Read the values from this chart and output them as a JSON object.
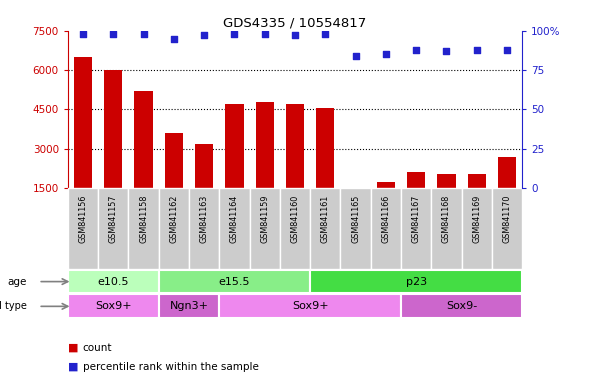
{
  "title": "GDS4335 / 10554817",
  "samples": [
    "GSM841156",
    "GSM841157",
    "GSM841158",
    "GSM841162",
    "GSM841163",
    "GSM841164",
    "GSM841159",
    "GSM841160",
    "GSM841161",
    "GSM841165",
    "GSM841166",
    "GSM841167",
    "GSM841168",
    "GSM841169",
    "GSM841170"
  ],
  "counts": [
    6500,
    6000,
    5200,
    3600,
    3200,
    4700,
    4800,
    4700,
    4550,
    1480,
    1750,
    2100,
    2050,
    2050,
    2700
  ],
  "percentiles": [
    98,
    98,
    98,
    95,
    97,
    98,
    98,
    97,
    98,
    84,
    85,
    88,
    87,
    88,
    88
  ],
  "ylim_left": [
    1500,
    7500
  ],
  "ylim_right": [
    0,
    100
  ],
  "yticks_left": [
    1500,
    3000,
    4500,
    6000,
    7500
  ],
  "yticks_right": [
    0,
    25,
    50,
    75,
    100
  ],
  "bar_color": "#cc0000",
  "dot_color": "#2222cc",
  "age_groups": [
    {
      "label": "e10.5",
      "start": 0,
      "end": 3,
      "color": "#bbffbb"
    },
    {
      "label": "e15.5",
      "start": 3,
      "end": 8,
      "color": "#88ee88"
    },
    {
      "label": "p23",
      "start": 8,
      "end": 15,
      "color": "#44dd44"
    }
  ],
  "cell_type_groups": [
    {
      "label": "Sox9+",
      "start": 0,
      "end": 3,
      "color": "#ee88ee"
    },
    {
      "label": "Ngn3+",
      "start": 3,
      "end": 5,
      "color": "#cc66cc"
    },
    {
      "label": "Sox9+",
      "start": 5,
      "end": 11,
      "color": "#ee88ee"
    },
    {
      "label": "Sox9-",
      "start": 11,
      "end": 15,
      "color": "#cc66cc"
    }
  ],
  "legend_count_label": "count",
  "legend_pct_label": "percentile rank within the sample",
  "bar_color_legend": "#cc0000",
  "dot_color_legend": "#2222cc",
  "tick_bg_color": "#cccccc",
  "row_label_age": "age",
  "row_label_cell": "cell type"
}
